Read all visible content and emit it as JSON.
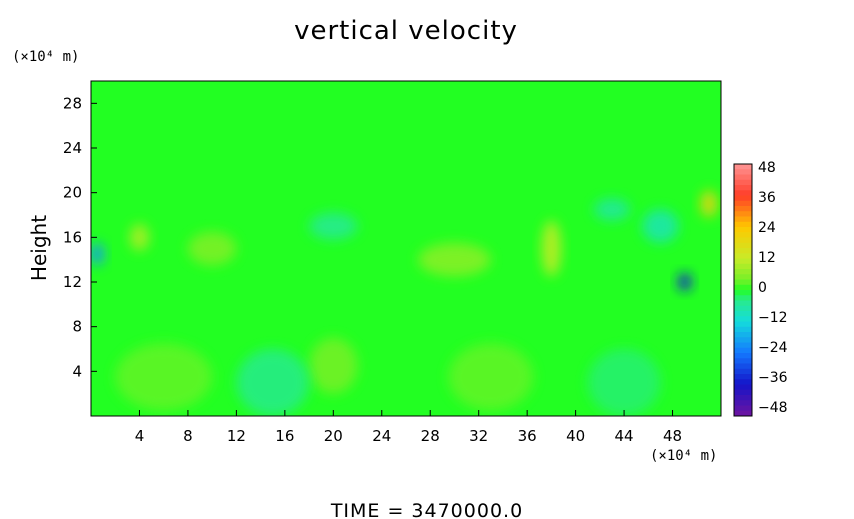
{
  "chart_data": {
    "type": "heatmap",
    "title": "vertical velocity",
    "ylabel": "Height",
    "y_unit": "(×10⁴ m)",
    "x_unit": "(×10⁴ m)",
    "xlim": [
      0,
      52
    ],
    "ylim": [
      0,
      30
    ],
    "x_ticks": [
      "4",
      "8",
      "12",
      "16",
      "20",
      "24",
      "28",
      "32",
      "36",
      "40",
      "44",
      "48"
    ],
    "y_ticks": [
      "4",
      "8",
      "12",
      "16",
      "20",
      "24",
      "28"
    ],
    "colorbar": {
      "range": [
        -48,
        48
      ],
      "tick_labels": [
        "48",
        "36",
        "24",
        "12",
        "0",
        "−12",
        "−24",
        "−36",
        "−48"
      ]
    },
    "footer": "TIME  =  3470000.0",
    "features": [
      {
        "x": 6,
        "y": 3.5,
        "v": 3,
        "rx": 4,
        "ry": 3
      },
      {
        "x": 20,
        "y": 4.5,
        "v": 4,
        "rx": 2,
        "ry": 2.5
      },
      {
        "x": 33,
        "y": 3.5,
        "v": 3,
        "rx": 3.5,
        "ry": 3
      },
      {
        "x": 15,
        "y": 3,
        "v": -4,
        "rx": 3,
        "ry": 3
      },
      {
        "x": 44,
        "y": 3,
        "v": -3,
        "rx": 3,
        "ry": 3
      },
      {
        "x": 38,
        "y": 15,
        "v": 12,
        "rx": 0.8,
        "ry": 2.5
      },
      {
        "x": 4,
        "y": 16,
        "v": 10,
        "rx": 0.8,
        "ry": 1.2
      },
      {
        "x": 0.5,
        "y": 14.5,
        "v": -20,
        "rx": 0.6,
        "ry": 1
      },
      {
        "x": 49,
        "y": 12,
        "v": -35,
        "rx": 0.6,
        "ry": 0.8
      },
      {
        "x": 51,
        "y": 19,
        "v": 20,
        "rx": 0.7,
        "ry": 1.2
      },
      {
        "x": 47,
        "y": 17,
        "v": -8,
        "rx": 1.5,
        "ry": 1.5
      },
      {
        "x": 43,
        "y": 18.5,
        "v": -6,
        "rx": 1.5,
        "ry": 1
      },
      {
        "x": 30,
        "y": 14,
        "v": 6,
        "rx": 3,
        "ry": 1.5
      },
      {
        "x": 10,
        "y": 15,
        "v": 5,
        "rx": 2,
        "ry": 1.5
      },
      {
        "x": 20,
        "y": 17,
        "v": -5,
        "rx": 2,
        "ry": 1.2
      }
    ]
  }
}
